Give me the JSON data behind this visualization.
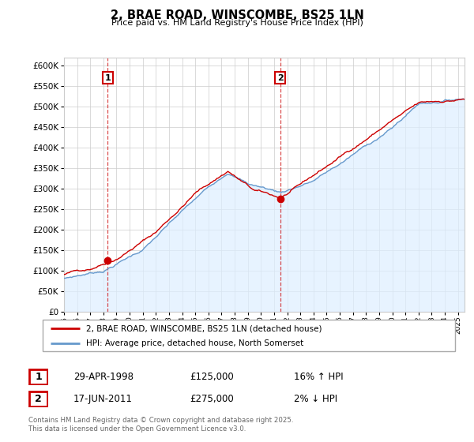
{
  "title": "2, BRAE ROAD, WINSCOMBE, BS25 1LN",
  "subtitle": "Price paid vs. HM Land Registry's House Price Index (HPI)",
  "sale1_date": "29-APR-1998",
  "sale1_price": 125000,
  "sale1_label": "1",
  "sale1_hpi_pct": "16% ↑ HPI",
  "sale1_year": 1998.33,
  "sale2_date": "17-JUN-2011",
  "sale2_price": 275000,
  "sale2_label": "2",
  "sale2_hpi_pct": "2% ↓ HPI",
  "sale2_year": 2011.46,
  "legend_line1": "2, BRAE ROAD, WINSCOMBE, BS25 1LN (detached house)",
  "legend_line2": "HPI: Average price, detached house, North Somerset",
  "footer": "Contains HM Land Registry data © Crown copyright and database right 2025.\nThis data is licensed under the Open Government Licence v3.0.",
  "ylim_min": 0,
  "ylim_max": 620000,
  "line_color_price": "#cc0000",
  "line_color_hpi": "#6699cc",
  "fill_color_hpi": "#ddeeff",
  "background_color": "#ffffff",
  "grid_color": "#cccccc"
}
